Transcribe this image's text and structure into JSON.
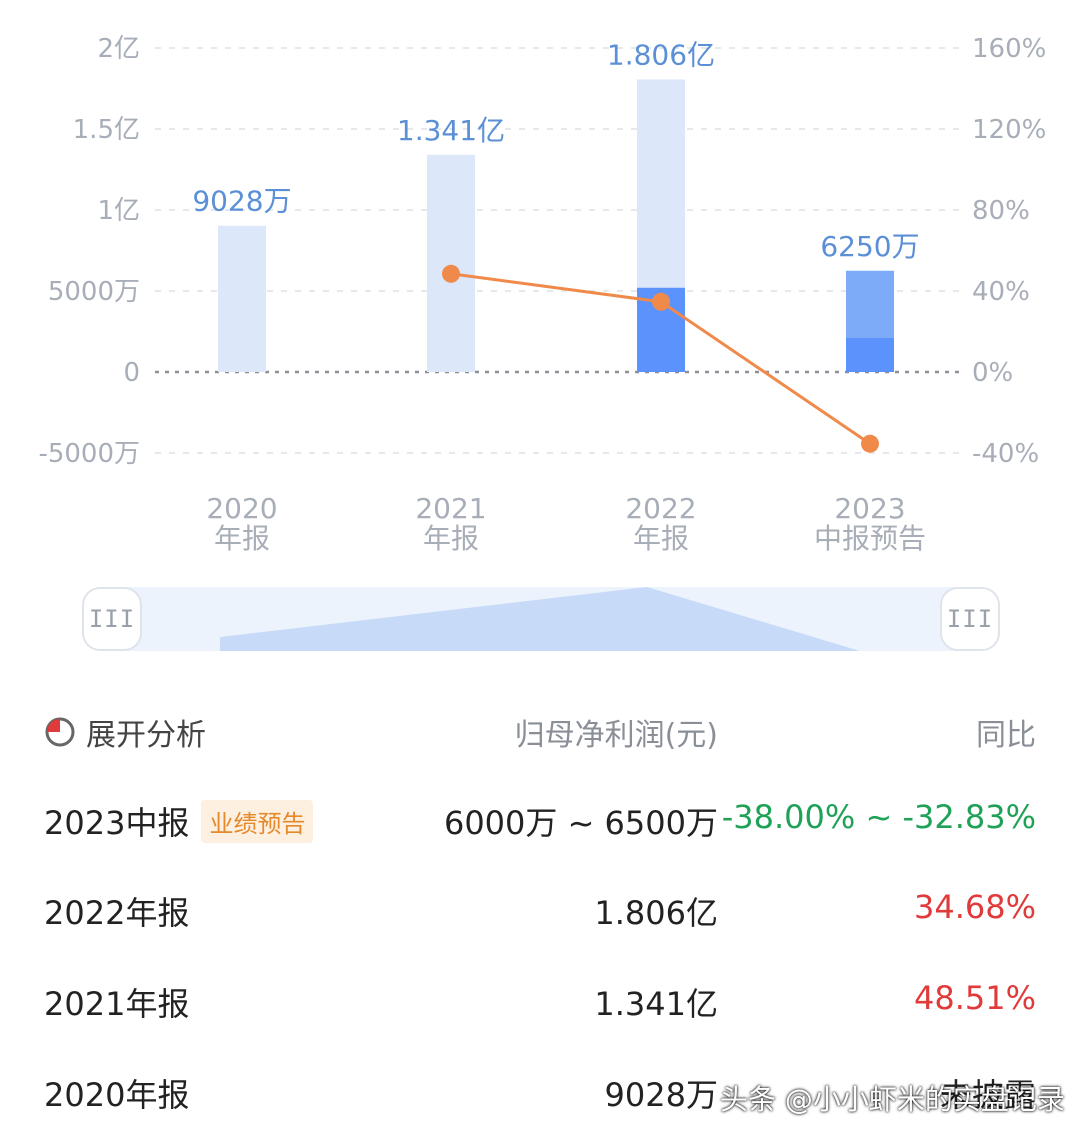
{
  "chart_data": {
    "type": "bar",
    "categories": [
      "2020\n年报",
      "2021\n年报",
      "2022\n年报",
      "2023\n中报预告"
    ],
    "bar_values": [
      9028,
      13410,
      18060,
      6250
    ],
    "bar_labels": [
      "9028万",
      "1.341亿",
      "1.806亿",
      "6250万"
    ],
    "bar_highlight_values": [
      null,
      null,
      5200,
      2100
    ],
    "line_values": [
      null,
      48.51,
      34.68,
      -35.42
    ],
    "left_ticks": [
      "2亿",
      "1.5亿",
      "1亿",
      "5000万",
      "0",
      "-5000万"
    ],
    "right_ticks": [
      "160%",
      "120%",
      "80%",
      "40%",
      "0%",
      "-40%"
    ],
    "left_range": [
      -5000,
      20000
    ],
    "right_range": [
      -40,
      160
    ],
    "colors": {
      "bar_light": "#dce8f9",
      "bar_mid": "#7eabf7",
      "bar_dark": "#5b92fb",
      "line": "#f08a4b",
      "grid": "#e6e8eb",
      "zero": "#8c9096",
      "value_label": "#5b8fd6"
    }
  },
  "slider": {
    "left_handle": "III",
    "right_handle": "III"
  },
  "table": {
    "header": {
      "expand_label": "展开分析",
      "value_col": "归母净利润(元)",
      "yoy_col": "同比"
    },
    "rows": [
      {
        "period": "2023中报",
        "badge": "业绩预告",
        "value": "6000万 ~ 6500万",
        "yoy": "-38.00% ~ -32.83%",
        "trend": "down"
      },
      {
        "period": "2022年报",
        "badge": "",
        "value": "1.806亿",
        "yoy": "34.68%",
        "trend": "up"
      },
      {
        "period": "2021年报",
        "badge": "",
        "value": "1.341亿",
        "yoy": "48.51%",
        "trend": "up"
      },
      {
        "period": "2020年报",
        "badge": "",
        "value": "9028万",
        "yoy": "未披露",
        "trend": "flat"
      }
    ]
  },
  "watermark": "头条 @小小虾米的实盘记录"
}
